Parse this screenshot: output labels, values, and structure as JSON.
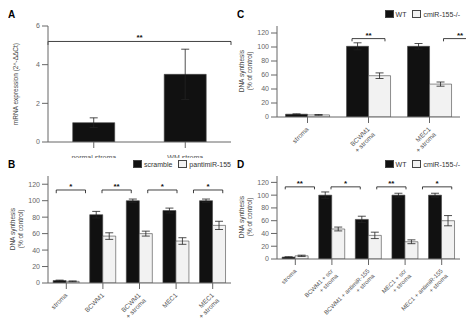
{
  "chart_data": [
    {
      "type": "bar",
      "title": "A",
      "categories": [
        "normal stroma",
        "WM stroma"
      ],
      "values": [
        1.0,
        3.5
      ],
      "errors": [
        0.25,
        1.3
      ],
      "color": "#111111",
      "ylabel": "mRNA expression (2^-ΔΔCt)",
      "ylim": [
        0,
        6
      ],
      "yticks": [
        0,
        2,
        4,
        6
      ],
      "annotations": [
        {
          "text": "**",
          "y": 5.2,
          "from": {
            "category": "normal stroma"
          },
          "to": {
            "category": "WM stroma"
          }
        }
      ]
    },
    {
      "type": "bar",
      "title": "B",
      "categories": [
        "stroma",
        "BCWM1",
        "BCWM1\n+ stroma",
        "MEC1",
        "MEC1\n+ stroma"
      ],
      "series": [
        {
          "name": "scramble",
          "color": "#111111",
          "values": [
            3,
            83,
            100,
            88,
            100
          ],
          "errors": [
            0.5,
            4,
            2,
            3,
            2
          ]
        },
        {
          "name": "pantimiR-155",
          "color": "#f2f2f2",
          "values": [
            2,
            57,
            60,
            51,
            70
          ],
          "errors": [
            0.5,
            4,
            3,
            4,
            5
          ]
        }
      ],
      "ylabel": "DNA synthesis\n(% of control)",
      "ylim": [
        0,
        130
      ],
      "yticks": [
        0,
        20,
        40,
        60,
        80,
        100,
        120
      ],
      "legend": "upper right",
      "annotations": [
        {
          "text": "*",
          "y": 113,
          "from": {
            "category": "stroma",
            "series": "pantimiR-155"
          },
          "to": {
            "category": "BCWM1",
            "series": "scramble"
          }
        },
        {
          "text": "**",
          "y": 113,
          "from": {
            "category": "BCWM1",
            "series": "pantimiR-155"
          },
          "to": {
            "category": "BCWM1\n+ stroma",
            "series": "scramble"
          }
        },
        {
          "text": "*",
          "y": 113,
          "from": {
            "category": "BCWM1\n+ stroma",
            "series": "pantimiR-155"
          },
          "to": {
            "category": "MEC1",
            "series": "scramble"
          }
        },
        {
          "text": "*",
          "y": 113,
          "from": {
            "category": "MEC1",
            "series": "pantimiR-155"
          },
          "to": {
            "category": "MEC1\n+ stroma",
            "series": "scramble"
          }
        }
      ]
    },
    {
      "type": "bar",
      "title": "C",
      "categories": [
        "stroma",
        "BCWM1\n+ stroma",
        "MEC1\n+ stroma"
      ],
      "series": [
        {
          "name": "WT",
          "color": "#111111",
          "values": [
            4,
            101,
            101
          ],
          "errors": [
            0.5,
            5,
            4
          ]
        },
        {
          "name": "cmiR-155-/-",
          "color": "#f2f2f2",
          "values": [
            3,
            59,
            47
          ],
          "errors": [
            0.5,
            4,
            3
          ]
        }
      ],
      "ylabel": "DNA synthesis\n(% of control)",
      "ylim": [
        0,
        130
      ],
      "yticks": [
        0,
        20,
        40,
        60,
        80,
        100,
        120
      ],
      "legend": "upper right",
      "annotations": [
        {
          "text": "**",
          "y": 112,
          "from": {
            "category": "BCWM1\n+ stroma",
            "series": "WT"
          },
          "to": {
            "category": "BCWM1\n+ stroma",
            "series": "cmiR-155-/-"
          }
        },
        {
          "text": "**",
          "y": 112,
          "from": {
            "category": "MEC1\n+ stroma",
            "series": "WT"
          },
          "to": {
            "category": "MEC1\n+ stroma",
            "series": "cmiR-155-/-"
          }
        }
      ]
    },
    {
      "type": "bar",
      "title": "D",
      "categories": [
        "stroma",
        "BCWM1 + scr\n+ stroma",
        "BCWM1 + antimiR-155\n+ stroma",
        "MEC1 + scr\n+ stroma",
        "MEC1 + antimiR-155\n+ stroma"
      ],
      "series": [
        {
          "name": "WT",
          "color": "#111111",
          "values": [
            3,
            100,
            62,
            100,
            100
          ],
          "errors": [
            0.5,
            5,
            5,
            3,
            3
          ]
        },
        {
          "name": "cmiR-155-/-",
          "color": "#f2f2f2",
          "values": [
            5,
            47,
            37,
            27,
            60
          ],
          "errors": [
            1,
            3,
            5,
            3,
            8
          ]
        }
      ],
      "ylabel": "DNA synthesis\n(% of control)",
      "ylim": [
        0,
        130
      ],
      "yticks": [
        0,
        20,
        40,
        60,
        80,
        100,
        120
      ],
      "legend": "upper right",
      "annotations": [
        {
          "text": "**",
          "y": 113,
          "from": {
            "category": "stroma",
            "series": "cmiR-155-/-"
          },
          "to": {
            "category": "BCWM1 + scr\n+ stroma",
            "series": "WT"
          }
        },
        {
          "text": "*",
          "y": 113,
          "from": {
            "category": "BCWM1 + scr\n+ stroma",
            "series": "cmiR-155-/-"
          },
          "to": {
            "category": "BCWM1 + antimiR-155\n+ stroma",
            "series": "WT"
          }
        },
        {
          "text": "**",
          "y": 113,
          "from": {
            "category": "BCWM1 + antimiR-155\n+ stroma",
            "series": "cmiR-155-/-"
          },
          "to": {
            "category": "MEC1 + scr\n+ stroma",
            "series": "WT"
          }
        },
        {
          "text": "*",
          "y": 113,
          "from": {
            "category": "MEC1 + scr\n+ stroma",
            "series": "cmiR-155-/-"
          },
          "to": {
            "category": "MEC1 + antimiR-155\n+ stroma",
            "series": "WT"
          }
        }
      ]
    }
  ]
}
